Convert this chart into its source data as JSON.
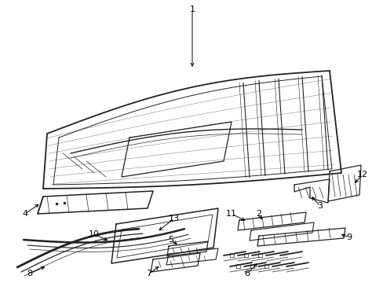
{
  "bg_color": "#ffffff",
  "line_color": "#222222",
  "text_color": "#000000",
  "fig_width": 4.89,
  "fig_height": 3.6,
  "dpi": 100
}
